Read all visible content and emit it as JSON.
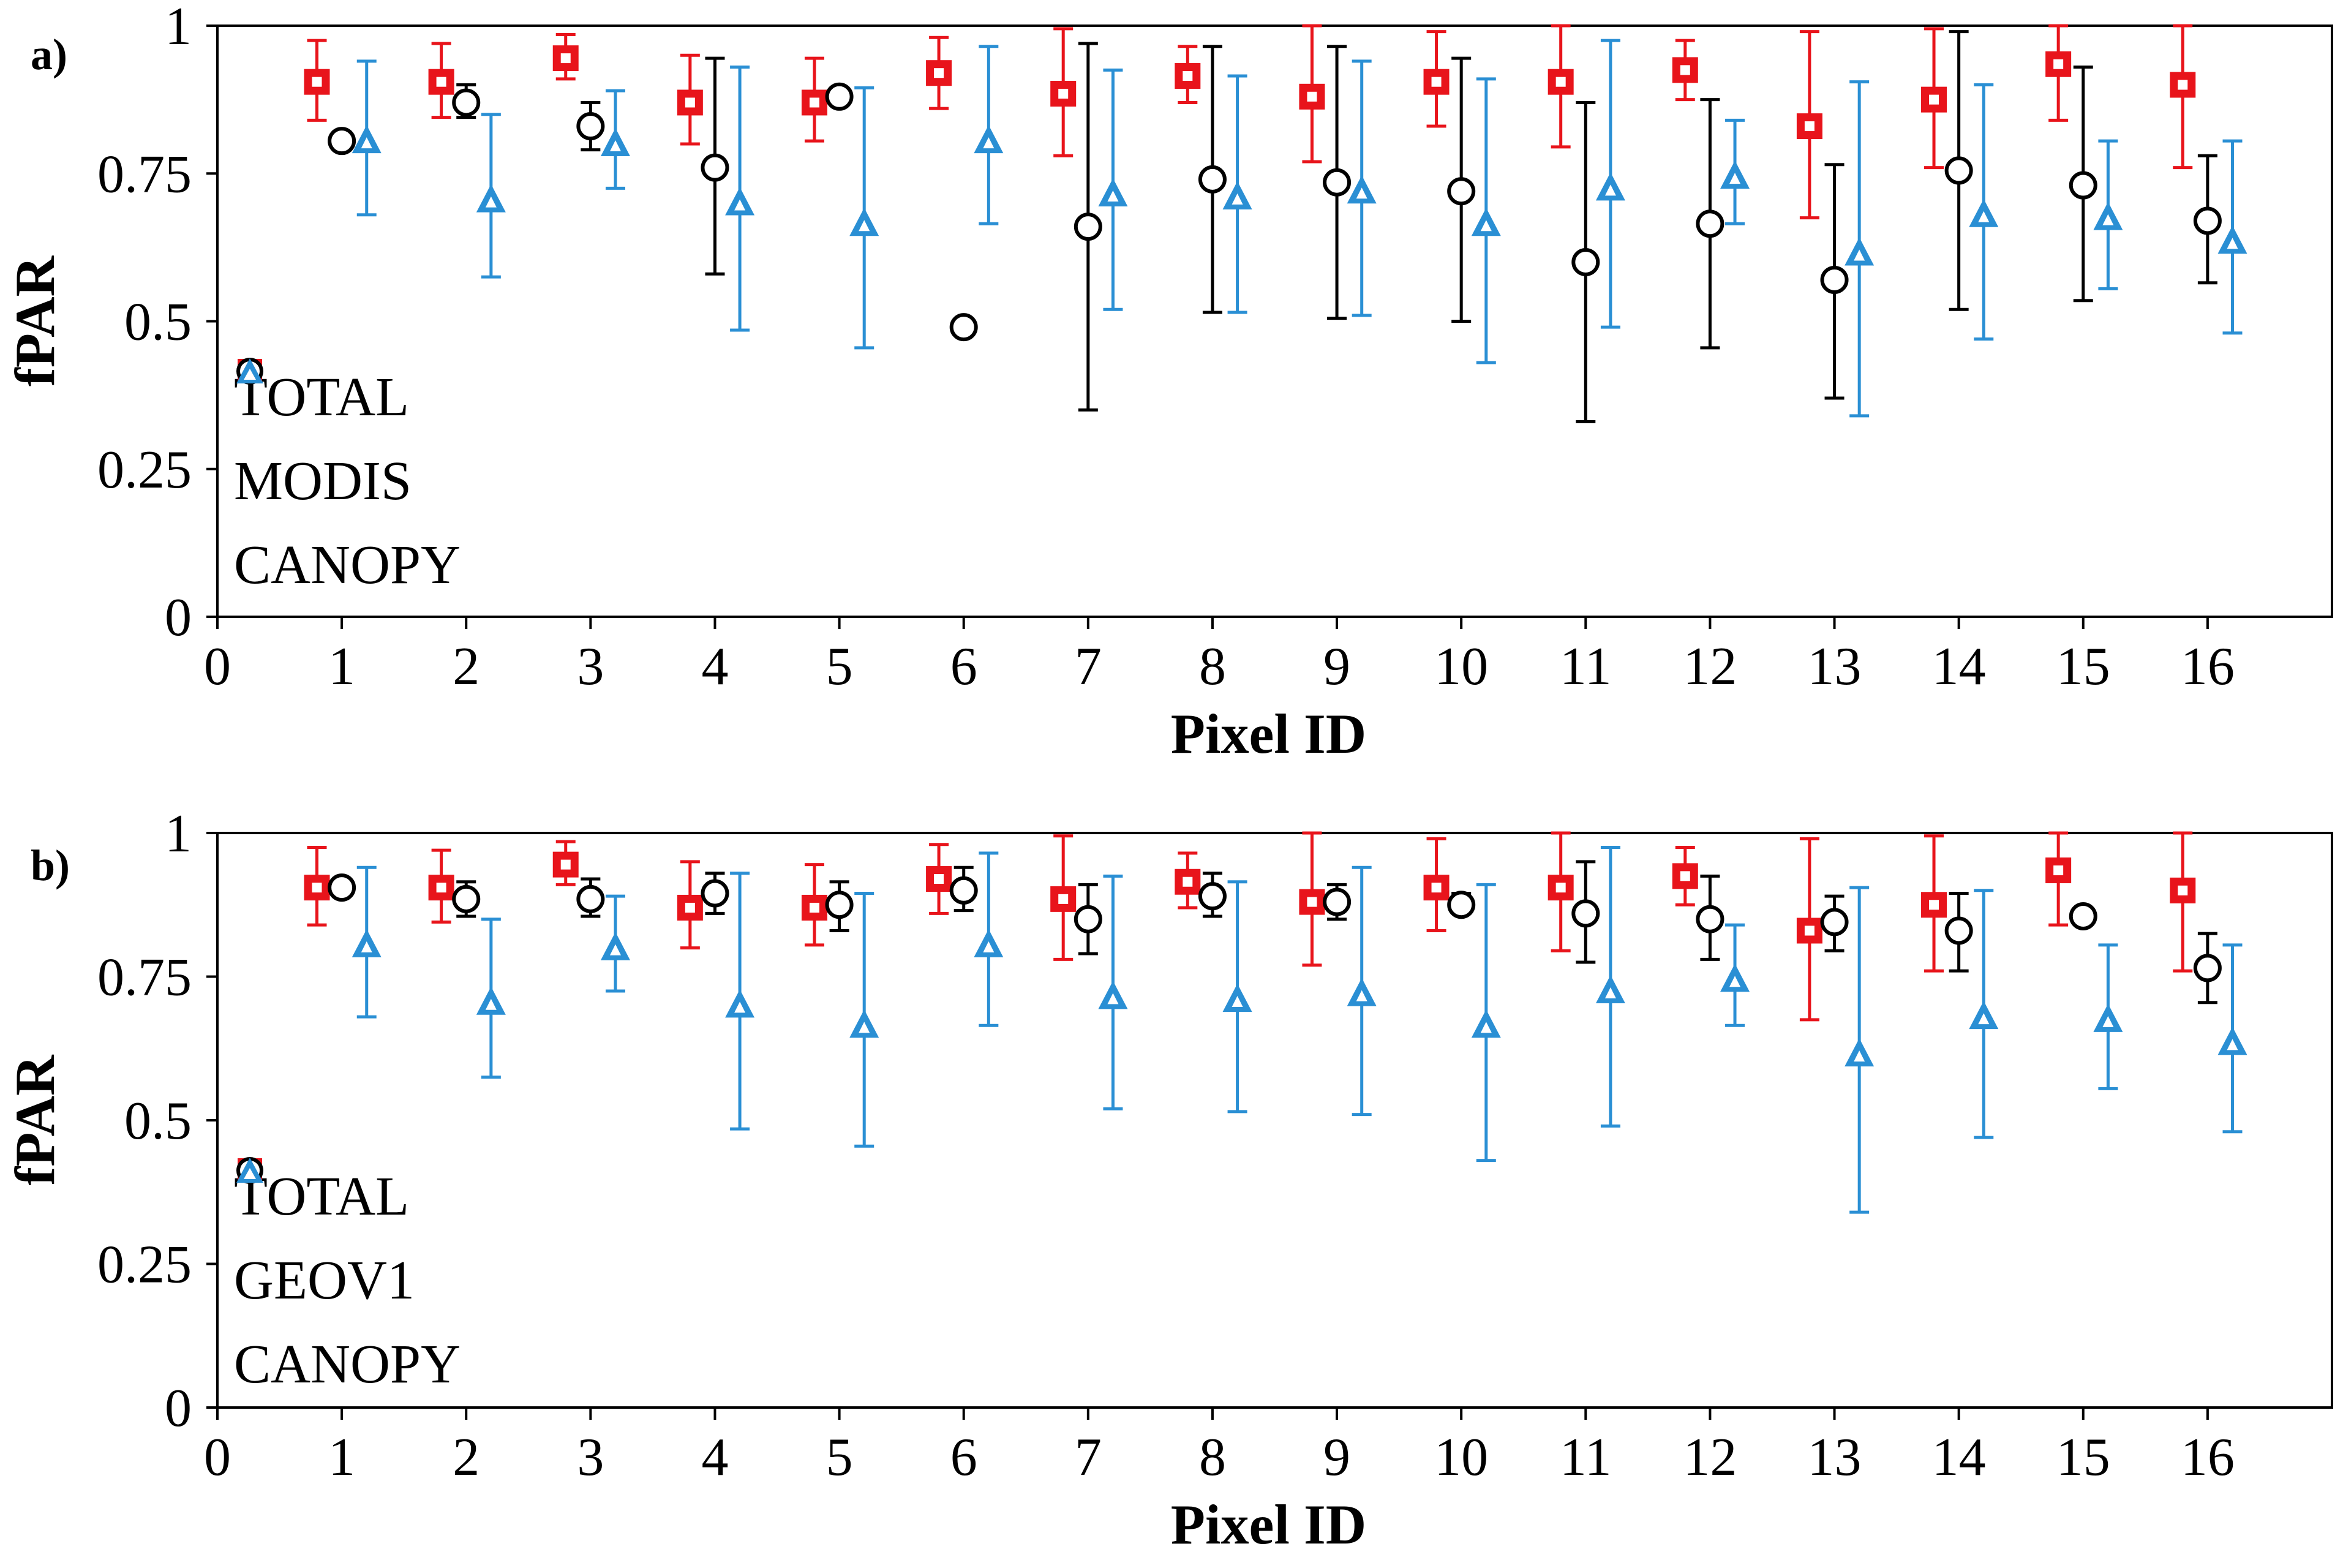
{
  "chart_data": [
    {
      "type": "scatter",
      "panel_label": "a)",
      "xlabel": "Pixel ID",
      "ylabel": "fPAR",
      "xlim": [
        0,
        17
      ],
      "ylim": [
        0,
        1
      ],
      "x_ticks": [
        "0",
        "1",
        "2",
        "3",
        "4",
        "5",
        "6",
        "7",
        "8",
        "9",
        "10",
        "11",
        "12",
        "13",
        "14",
        "15",
        "16"
      ],
      "y_ticks": [
        "0",
        "0.25",
        "0.5",
        "0.75",
        "1"
      ],
      "legend_position": "left",
      "grid": false,
      "series": [
        {
          "name": "TOTAL",
          "marker": "square",
          "color": "#e8141b",
          "x_offset": -0.2,
          "points": [
            {
              "x": 1,
              "y": 0.905,
              "lo": 0.84,
              "hi": 0.975
            },
            {
              "x": 2,
              "y": 0.905,
              "lo": 0.845,
              "hi": 0.97
            },
            {
              "x": 3,
              "y": 0.945,
              "lo": 0.91,
              "hi": 0.985
            },
            {
              "x": 4,
              "y": 0.87,
              "lo": 0.8,
              "hi": 0.95
            },
            {
              "x": 5,
              "y": 0.87,
              "lo": 0.805,
              "hi": 0.945
            },
            {
              "x": 6,
              "y": 0.92,
              "lo": 0.86,
              "hi": 0.98
            },
            {
              "x": 7,
              "y": 0.885,
              "lo": 0.78,
              "hi": 0.995
            },
            {
              "x": 8,
              "y": 0.915,
              "lo": 0.87,
              "hi": 0.965
            },
            {
              "x": 9,
              "y": 0.88,
              "lo": 0.77,
              "hi": 1.0
            },
            {
              "x": 10,
              "y": 0.905,
              "lo": 0.83,
              "hi": 0.99
            },
            {
              "x": 11,
              "y": 0.905,
              "lo": 0.795,
              "hi": 1.0
            },
            {
              "x": 12,
              "y": 0.925,
              "lo": 0.875,
              "hi": 0.975
            },
            {
              "x": 13,
              "y": 0.83,
              "lo": 0.675,
              "hi": 0.99
            },
            {
              "x": 14,
              "y": 0.875,
              "lo": 0.76,
              "hi": 0.995
            },
            {
              "x": 15,
              "y": 0.935,
              "lo": 0.84,
              "hi": 1.0
            },
            {
              "x": 16,
              "y": 0.9,
              "lo": 0.76,
              "hi": 1.0
            }
          ]
        },
        {
          "name": "MODIS",
          "marker": "circle",
          "color": "#000000",
          "x_offset": 0.0,
          "points": [
            {
              "x": 1,
              "y": 0.805,
              "lo": 0.79,
              "hi": 0.82
            },
            {
              "x": 2,
              "y": 0.87,
              "lo": 0.845,
              "hi": 0.9
            },
            {
              "x": 3,
              "y": 0.83,
              "lo": 0.79,
              "hi": 0.87
            },
            {
              "x": 4,
              "y": 0.76,
              "lo": 0.58,
              "hi": 0.945
            },
            {
              "x": 5,
              "y": 0.88,
              "lo": 0.875,
              "hi": 0.885
            },
            {
              "x": 6,
              "y": 0.49,
              "lo": 0.49,
              "hi": 0.49
            },
            {
              "x": 7,
              "y": 0.66,
              "lo": 0.35,
              "hi": 0.97
            },
            {
              "x": 8,
              "y": 0.74,
              "lo": 0.515,
              "hi": 0.965
            },
            {
              "x": 9,
              "y": 0.735,
              "lo": 0.505,
              "hi": 0.965
            },
            {
              "x": 10,
              "y": 0.72,
              "lo": 0.5,
              "hi": 0.945
            },
            {
              "x": 11,
              "y": 0.6,
              "lo": 0.33,
              "hi": 0.87
            },
            {
              "x": 12,
              "y": 0.665,
              "lo": 0.455,
              "hi": 0.875
            },
            {
              "x": 13,
              "y": 0.57,
              "lo": 0.37,
              "hi": 0.765
            },
            {
              "x": 14,
              "y": 0.755,
              "lo": 0.52,
              "hi": 0.99
            },
            {
              "x": 15,
              "y": 0.73,
              "lo": 0.535,
              "hi": 0.93
            },
            {
              "x": 16,
              "y": 0.67,
              "lo": 0.565,
              "hi": 0.78
            }
          ]
        },
        {
          "name": "CANOPY",
          "marker": "triangle",
          "color": "#2a8fd4",
          "x_offset": 0.2,
          "points": [
            {
              "x": 1,
              "y": 0.805,
              "lo": 0.68,
              "hi": 0.94
            },
            {
              "x": 2,
              "y": 0.705,
              "lo": 0.575,
              "hi": 0.85
            },
            {
              "x": 3,
              "y": 0.8,
              "lo": 0.725,
              "hi": 0.89
            },
            {
              "x": 4,
              "y": 0.7,
              "lo": 0.485,
              "hi": 0.93
            },
            {
              "x": 5,
              "y": 0.665,
              "lo": 0.455,
              "hi": 0.895
            },
            {
              "x": 6,
              "y": 0.805,
              "lo": 0.665,
              "hi": 0.965
            },
            {
              "x": 7,
              "y": 0.715,
              "lo": 0.52,
              "hi": 0.925
            },
            {
              "x": 8,
              "y": 0.71,
              "lo": 0.515,
              "hi": 0.915
            },
            {
              "x": 9,
              "y": 0.72,
              "lo": 0.51,
              "hi": 0.94
            },
            {
              "x": 10,
              "y": 0.665,
              "lo": 0.43,
              "hi": 0.91
            },
            {
              "x": 11,
              "y": 0.725,
              "lo": 0.49,
              "hi": 0.975
            },
            {
              "x": 12,
              "y": 0.745,
              "lo": 0.665,
              "hi": 0.84
            },
            {
              "x": 13,
              "y": 0.615,
              "lo": 0.34,
              "hi": 0.905
            },
            {
              "x": 14,
              "y": 0.68,
              "lo": 0.47,
              "hi": 0.9
            },
            {
              "x": 15,
              "y": 0.675,
              "lo": 0.555,
              "hi": 0.805
            },
            {
              "x": 16,
              "y": 0.635,
              "lo": 0.48,
              "hi": 0.805
            }
          ]
        }
      ]
    },
    {
      "type": "scatter",
      "panel_label": "b)",
      "xlabel": "Pixel ID",
      "ylabel": "fPAR",
      "xlim": [
        0,
        17
      ],
      "ylim": [
        0,
        1
      ],
      "x_ticks": [
        "0",
        "1",
        "2",
        "3",
        "4",
        "5",
        "6",
        "7",
        "8",
        "9",
        "10",
        "11",
        "12",
        "13",
        "14",
        "15",
        "16"
      ],
      "y_ticks": [
        "0",
        "0.25",
        "0.5",
        "0.75",
        "1"
      ],
      "legend_position": "left",
      "grid": false,
      "series": [
        {
          "name": "TOTAL",
          "marker": "square",
          "color": "#e8141b",
          "x_offset": -0.2,
          "points": [
            {
              "x": 1,
              "y": 0.905,
              "lo": 0.84,
              "hi": 0.975
            },
            {
              "x": 2,
              "y": 0.905,
              "lo": 0.845,
              "hi": 0.97
            },
            {
              "x": 3,
              "y": 0.945,
              "lo": 0.91,
              "hi": 0.985
            },
            {
              "x": 4,
              "y": 0.87,
              "lo": 0.8,
              "hi": 0.95
            },
            {
              "x": 5,
              "y": 0.87,
              "lo": 0.805,
              "hi": 0.945
            },
            {
              "x": 6,
              "y": 0.92,
              "lo": 0.86,
              "hi": 0.98
            },
            {
              "x": 7,
              "y": 0.885,
              "lo": 0.78,
              "hi": 0.995
            },
            {
              "x": 8,
              "y": 0.915,
              "lo": 0.87,
              "hi": 0.965
            },
            {
              "x": 9,
              "y": 0.88,
              "lo": 0.77,
              "hi": 1.0
            },
            {
              "x": 10,
              "y": 0.905,
              "lo": 0.83,
              "hi": 0.99
            },
            {
              "x": 11,
              "y": 0.905,
              "lo": 0.795,
              "hi": 1.0
            },
            {
              "x": 12,
              "y": 0.925,
              "lo": 0.875,
              "hi": 0.975
            },
            {
              "x": 13,
              "y": 0.83,
              "lo": 0.675,
              "hi": 0.99
            },
            {
              "x": 14,
              "y": 0.875,
              "lo": 0.76,
              "hi": 0.995
            },
            {
              "x": 15,
              "y": 0.935,
              "lo": 0.84,
              "hi": 1.0
            },
            {
              "x": 16,
              "y": 0.9,
              "lo": 0.76,
              "hi": 1.0
            }
          ]
        },
        {
          "name": "GEOV1",
          "marker": "circle",
          "color": "#000000",
          "x_offset": 0.0,
          "points": [
            {
              "x": 1,
              "y": 0.905,
              "lo": 0.895,
              "hi": 0.915
            },
            {
              "x": 2,
              "y": 0.885,
              "lo": 0.855,
              "hi": 0.915
            },
            {
              "x": 3,
              "y": 0.885,
              "lo": 0.855,
              "hi": 0.92
            },
            {
              "x": 4,
              "y": 0.895,
              "lo": 0.86,
              "hi": 0.93
            },
            {
              "x": 5,
              "y": 0.875,
              "lo": 0.83,
              "hi": 0.915
            },
            {
              "x": 6,
              "y": 0.9,
              "lo": 0.865,
              "hi": 0.94
            },
            {
              "x": 7,
              "y": 0.85,
              "lo": 0.79,
              "hi": 0.91
            },
            {
              "x": 8,
              "y": 0.89,
              "lo": 0.855,
              "hi": 0.93
            },
            {
              "x": 9,
              "y": 0.88,
              "lo": 0.85,
              "hi": 0.91
            },
            {
              "x": 10,
              "y": 0.875,
              "lo": 0.86,
              "hi": 0.895
            },
            {
              "x": 11,
              "y": 0.86,
              "lo": 0.775,
              "hi": 0.95
            },
            {
              "x": 12,
              "y": 0.85,
              "lo": 0.78,
              "hi": 0.925
            },
            {
              "x": 13,
              "y": 0.845,
              "lo": 0.795,
              "hi": 0.89
            },
            {
              "x": 14,
              "y": 0.83,
              "lo": 0.76,
              "hi": 0.895
            },
            {
              "x": 15,
              "y": 0.855,
              "lo": 0.845,
              "hi": 0.865
            },
            {
              "x": 16,
              "y": 0.765,
              "lo": 0.705,
              "hi": 0.825
            }
          ]
        },
        {
          "name": "CANOPY",
          "marker": "triangle",
          "color": "#2a8fd4",
          "x_offset": 0.2,
          "points": [
            {
              "x": 1,
              "y": 0.805,
              "lo": 0.68,
              "hi": 0.94
            },
            {
              "x": 2,
              "y": 0.705,
              "lo": 0.575,
              "hi": 0.85
            },
            {
              "x": 3,
              "y": 0.8,
              "lo": 0.725,
              "hi": 0.89
            },
            {
              "x": 4,
              "y": 0.7,
              "lo": 0.485,
              "hi": 0.93
            },
            {
              "x": 5,
              "y": 0.665,
              "lo": 0.455,
              "hi": 0.895
            },
            {
              "x": 6,
              "y": 0.805,
              "lo": 0.665,
              "hi": 0.965
            },
            {
              "x": 7,
              "y": 0.715,
              "lo": 0.52,
              "hi": 0.925
            },
            {
              "x": 8,
              "y": 0.71,
              "lo": 0.515,
              "hi": 0.915
            },
            {
              "x": 9,
              "y": 0.72,
              "lo": 0.51,
              "hi": 0.94
            },
            {
              "x": 10,
              "y": 0.665,
              "lo": 0.43,
              "hi": 0.91
            },
            {
              "x": 11,
              "y": 0.725,
              "lo": 0.49,
              "hi": 0.975
            },
            {
              "x": 12,
              "y": 0.745,
              "lo": 0.665,
              "hi": 0.84
            },
            {
              "x": 13,
              "y": 0.615,
              "lo": 0.34,
              "hi": 0.905
            },
            {
              "x": 14,
              "y": 0.68,
              "lo": 0.47,
              "hi": 0.9
            },
            {
              "x": 15,
              "y": 0.675,
              "lo": 0.555,
              "hi": 0.805
            },
            {
              "x": 16,
              "y": 0.635,
              "lo": 0.48,
              "hi": 0.805
            }
          ]
        }
      ]
    }
  ]
}
